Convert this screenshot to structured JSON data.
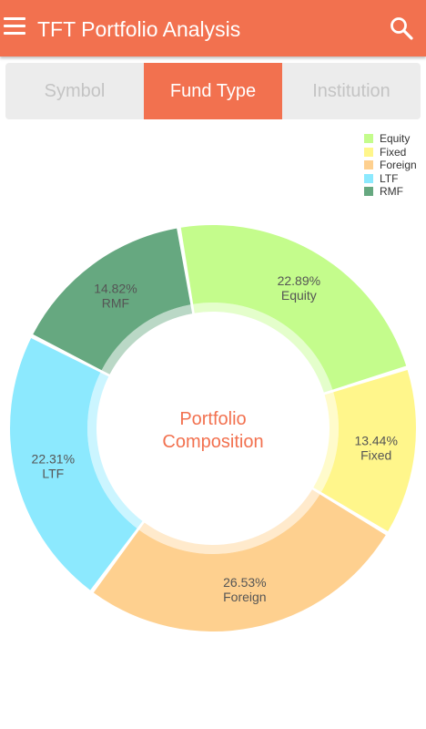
{
  "app": {
    "title": "TFT Portfolio Analysis",
    "menu_icon": "hamburger-menu-icon",
    "search_icon": "search-icon",
    "accent_color": "#F2714F"
  },
  "tabs": [
    {
      "label": "Symbol",
      "selected": false
    },
    {
      "label": "Fund Type",
      "selected": true
    },
    {
      "label": "Institution",
      "selected": false
    }
  ],
  "chart_data": {
    "type": "pie",
    "center_text": [
      "Portfolio",
      "Composition"
    ],
    "legend_placement": "top-right",
    "slices": [
      {
        "name": "Equity",
        "value": 22.89,
        "label": "22.89%",
        "color": "#C4FC8C"
      },
      {
        "name": "Fixed",
        "value": 13.44,
        "label": "13.44%",
        "color": "#FFF68B"
      },
      {
        "name": "Foreign",
        "value": 26.53,
        "label": "26.53%",
        "color": "#FED08F"
      },
      {
        "name": "LTF",
        "value": 22.31,
        "label": "22.31%",
        "color": "#8CE9FE"
      },
      {
        "name": "RMF",
        "value": 14.82,
        "label": "14.82%",
        "color": "#66A880"
      }
    ]
  }
}
